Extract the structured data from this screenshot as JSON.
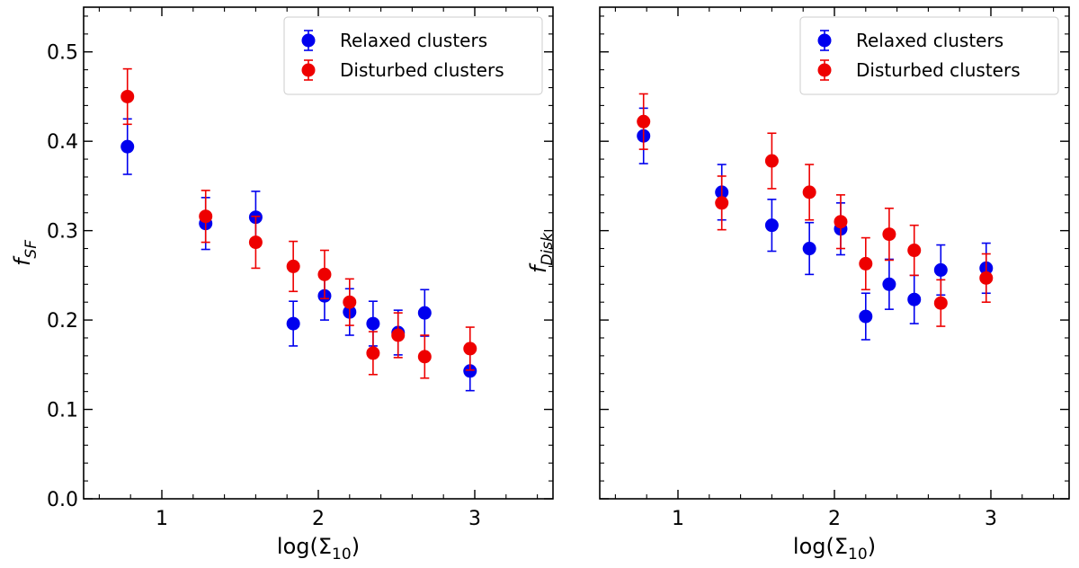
{
  "chart_data": [
    {
      "type": "scatter",
      "panel": "left",
      "xlabel": "log(Σ",
      "xlabel_sub": "10",
      "xlabel_close": ")",
      "ylabel": "f",
      "ylabel_sub": "SF",
      "xlim": [
        0.5,
        3.5
      ],
      "ylim": [
        0.0,
        0.55
      ],
      "xticks": [
        1,
        2,
        3
      ],
      "xtick_labels": [
        "1",
        "2",
        "3"
      ],
      "yticks": [
        0.0,
        0.1,
        0.2,
        0.3,
        0.4,
        0.5
      ],
      "ytick_labels": [
        "0.0",
        "0.1",
        "0.2",
        "0.3",
        "0.4",
        "0.5"
      ],
      "legend_position": "top-right",
      "series": [
        {
          "name": "Relaxed clusters",
          "color": "#0000ee",
          "x": [
            0.78,
            1.28,
            1.6,
            1.84,
            2.04,
            2.2,
            2.35,
            2.51,
            2.68,
            2.97
          ],
          "y": [
            0.394,
            0.308,
            0.315,
            0.196,
            0.227,
            0.209,
            0.196,
            0.186,
            0.208,
            0.143
          ],
          "yerr": [
            0.031,
            0.029,
            0.029,
            0.025,
            0.027,
            0.026,
            0.025,
            0.025,
            0.026,
            0.022
          ]
        },
        {
          "name": "Disturbed clusters",
          "color": "#ee0000",
          "x": [
            0.78,
            1.28,
            1.6,
            1.84,
            2.04,
            2.2,
            2.35,
            2.51,
            2.68,
            2.97
          ],
          "y": [
            0.45,
            0.316,
            0.287,
            0.26,
            0.251,
            0.22,
            0.163,
            0.183,
            0.159,
            0.168
          ],
          "yerr": [
            0.031,
            0.029,
            0.029,
            0.028,
            0.027,
            0.026,
            0.024,
            0.025,
            0.024,
            0.024
          ]
        }
      ]
    },
    {
      "type": "scatter",
      "panel": "right",
      "xlabel": "log(Σ",
      "xlabel_sub": "10",
      "xlabel_close": ")",
      "ylabel": "f",
      "ylabel_sub": "Disk",
      "xlim": [
        0.5,
        3.5
      ],
      "ylim": [
        0.0,
        0.55
      ],
      "xticks": [
        1,
        2,
        3
      ],
      "xtick_labels": [
        "1",
        "2",
        "3"
      ],
      "yticks": [
        0.0,
        0.1,
        0.2,
        0.3,
        0.4,
        0.5
      ],
      "ytick_labels": [],
      "legend_position": "top-right",
      "series": [
        {
          "name": "Relaxed clusters",
          "color": "#0000ee",
          "x": [
            0.78,
            1.28,
            1.6,
            1.84,
            2.04,
            2.2,
            2.35,
            2.51,
            2.68,
            2.97
          ],
          "y": [
            0.406,
            0.343,
            0.306,
            0.28,
            0.302,
            0.204,
            0.24,
            0.223,
            0.256,
            0.258
          ],
          "yerr": [
            0.031,
            0.031,
            0.029,
            0.029,
            0.029,
            0.026,
            0.028,
            0.027,
            0.028,
            0.028
          ]
        },
        {
          "name": "Disturbed clusters",
          "color": "#ee0000",
          "x": [
            0.78,
            1.28,
            1.6,
            1.84,
            2.04,
            2.2,
            2.35,
            2.51,
            2.68,
            2.97
          ],
          "y": [
            0.422,
            0.331,
            0.378,
            0.343,
            0.31,
            0.263,
            0.296,
            0.278,
            0.219,
            0.247
          ],
          "yerr": [
            0.031,
            0.03,
            0.031,
            0.031,
            0.03,
            0.029,
            0.029,
            0.028,
            0.026,
            0.027
          ]
        }
      ]
    }
  ]
}
